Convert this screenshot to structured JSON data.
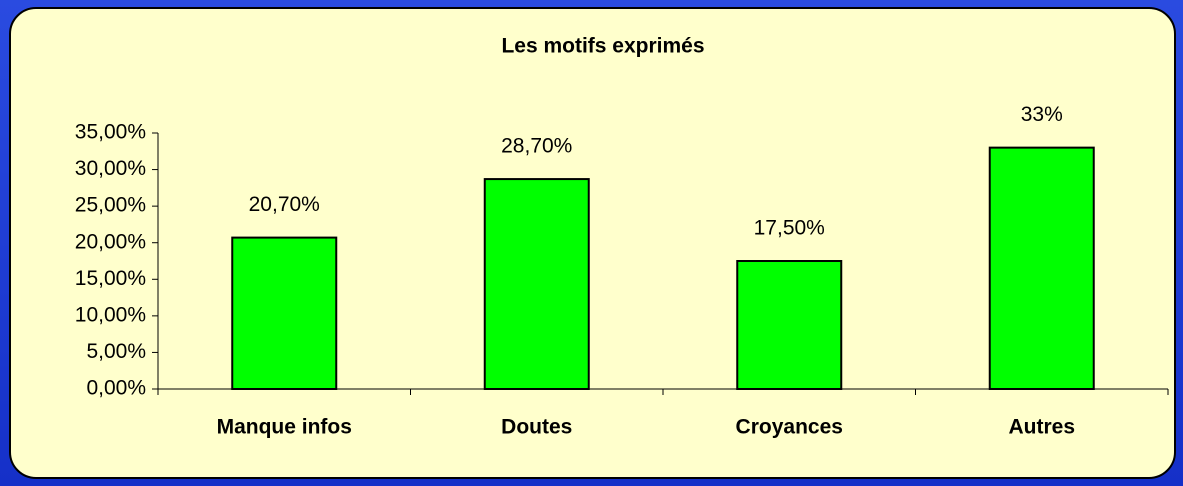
{
  "chart_data": {
    "type": "bar",
    "title": "Les motifs exprimés",
    "categories": [
      "Manque infos",
      "Doutes",
      "Croyances",
      "Autres"
    ],
    "values": [
      20.7,
      28.7,
      17.5,
      33
    ],
    "value_labels": [
      "20,70%",
      "28,70%",
      "17,50%",
      "33%"
    ],
    "color": "#00ff00",
    "ylim": [
      0,
      35
    ],
    "yticks": [
      {
        "value": 0,
        "label": "0,00%"
      },
      {
        "value": 5,
        "label": "5,00%"
      },
      {
        "value": 10,
        "label": "10,00%"
      },
      {
        "value": 15,
        "label": "15,00%"
      },
      {
        "value": 20,
        "label": "20,00%"
      },
      {
        "value": 25,
        "label": "25,00%"
      },
      {
        "value": 30,
        "label": "30,00%"
      },
      {
        "value": 35,
        "label": "35,00%"
      }
    ],
    "grid": false
  }
}
